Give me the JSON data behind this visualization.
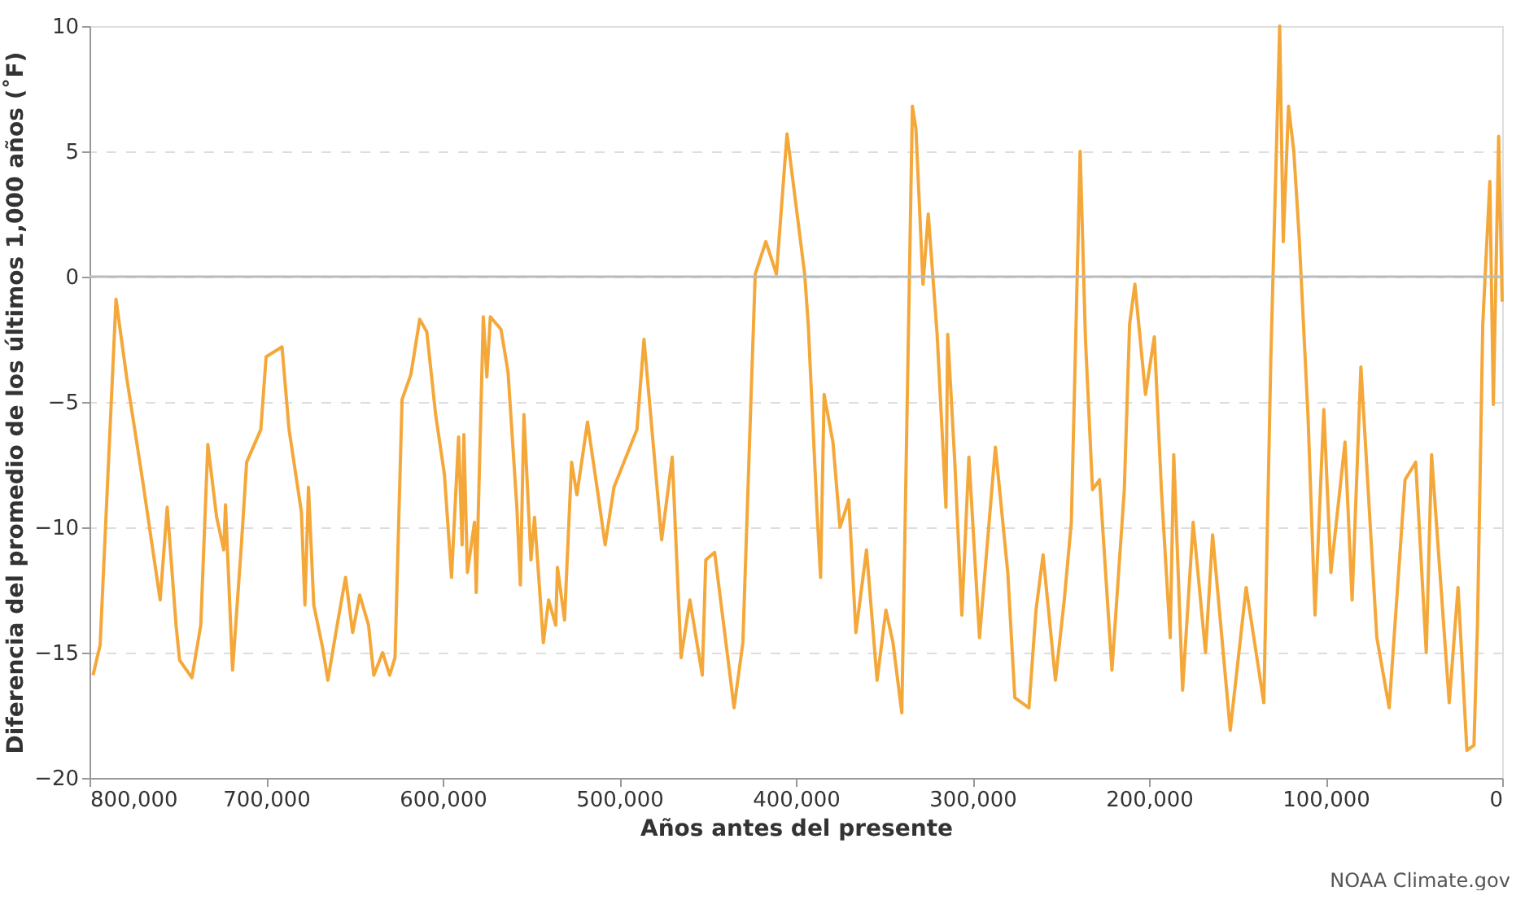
{
  "chart_data": {
    "type": "line",
    "xlabel": "Años antes del presente",
    "ylabel": "Diferencia del promedio de los últimos 1,000 años (˚F)",
    "annotations": [
      "NOAA Climate.gov"
    ],
    "x": [
      798000,
      794000,
      785000,
      779000,
      770000,
      760000,
      756000,
      751000,
      749000,
      742000,
      737000,
      733000,
      728000,
      724000,
      723000,
      719000,
      714000,
      711000,
      703000,
      700000,
      691000,
      687000,
      680000,
      678000,
      676000,
      673000,
      668000,
      665000,
      660000,
      655000,
      651000,
      647000,
      642000,
      639000,
      634000,
      630000,
      627000,
      623000,
      618000,
      613000,
      609000,
      604000,
      599000,
      595000,
      591000,
      589000,
      588000,
      586000,
      582000,
      581000,
      577000,
      575000,
      573000,
      567000,
      563000,
      558000,
      556000,
      554000,
      550000,
      548000,
      543000,
      540000,
      536000,
      535000,
      531000,
      527000,
      524000,
      518000,
      512000,
      508000,
      503000,
      490000,
      486000,
      476000,
      470000,
      465000,
      460000,
      453000,
      451000,
      446000,
      435000,
      430000,
      425000,
      423000,
      417000,
      411000,
      405000,
      400000,
      395000,
      393000,
      388000,
      386000,
      384000,
      379000,
      375000,
      370000,
      366000,
      360000,
      354000,
      349000,
      345000,
      340000,
      334000,
      332000,
      328000,
      325000,
      320000,
      315000,
      314000,
      310000,
      306000,
      302000,
      296000,
      287000,
      280000,
      276000,
      268000,
      264000,
      260000,
      253000,
      248000,
      244000,
      239000,
      236000,
      232000,
      228000,
      221000,
      214000,
      211000,
      208000,
      202000,
      197000,
      193000,
      188000,
      186000,
      181000,
      175000,
      168000,
      164000,
      154000,
      145000,
      135000,
      131000,
      126000,
      124000,
      121000,
      118000,
      115000,
      110000,
      106000,
      101000,
      97000,
      89000,
      85000,
      80000,
      71000,
      64000,
      55000,
      49000,
      43000,
      40000,
      30000,
      25000,
      20000,
      16000,
      14000,
      11000,
      7000,
      5000,
      2000,
      0
    ],
    "series": [
      {
        "color": "#f5a83a",
        "values": [
          -15.9,
          -14.7,
          -0.9,
          -4.0,
          -8.1,
          -12.9,
          -9.2,
          -13.9,
          -15.3,
          -16.0,
          -13.9,
          -6.7,
          -9.6,
          -10.9,
          -9.1,
          -15.7,
          -10.7,
          -7.4,
          -6.1,
          -3.2,
          -2.8,
          -6.1,
          -9.4,
          -13.1,
          -8.4,
          -13.1,
          -14.8,
          -16.1,
          -14.0,
          -12.0,
          -14.2,
          -12.7,
          -13.9,
          -15.9,
          -15.0,
          -15.9,
          -15.2,
          -4.9,
          -3.9,
          -1.7,
          -2.2,
          -5.5,
          -7.9,
          -12.0,
          -6.4,
          -10.7,
          -6.3,
          -11.8,
          -9.8,
          -12.6,
          -1.6,
          -4.0,
          -1.6,
          -2.1,
          -3.8,
          -9.2,
          -12.3,
          -5.5,
          -11.3,
          -9.6,
          -14.6,
          -12.9,
          -13.9,
          -11.6,
          -13.7,
          -7.4,
          -8.7,
          -5.8,
          -8.7,
          -10.7,
          -8.4,
          -6.1,
          -2.5,
          -10.5,
          -7.2,
          -15.2,
          -12.9,
          -15.9,
          -11.3,
          -11.0,
          -17.2,
          -14.6,
          -4.0,
          0.1,
          1.4,
          0.1,
          5.7,
          2.9,
          0.1,
          -1.9,
          -9.4,
          -12.0,
          -4.7,
          -6.6,
          -10.0,
          -8.9,
          -14.2,
          -10.9,
          -16.1,
          -13.3,
          -14.6,
          -17.4,
          6.8,
          5.9,
          -0.3,
          2.5,
          -2.3,
          -9.2,
          -2.3,
          -7.4,
          -13.5,
          -7.2,
          -14.4,
          -6.8,
          -11.8,
          -16.8,
          -17.2,
          -13.3,
          -11.1,
          -16.1,
          -12.9,
          -9.8,
          5.0,
          -2.5,
          -8.5,
          -8.1,
          -15.7,
          -8.5,
          -1.9,
          -0.3,
          -4.7,
          -2.4,
          -8.5,
          -14.4,
          -7.1,
          -16.5,
          -9.8,
          -15.0,
          -10.3,
          -18.1,
          -12.4,
          -17.0,
          -3.2,
          10.0,
          1.4,
          6.8,
          5.0,
          1.6,
          -5.5,
          -13.5,
          -5.3,
          -11.8,
          -6.6,
          -12.9,
          -3.6,
          -14.4,
          -17.2,
          -8.1,
          -7.4,
          -15.0,
          -7.1,
          -17.0,
          -12.4,
          -18.9,
          -18.7,
          -13.9,
          -1.9,
          3.8,
          -5.1,
          5.6,
          -1.0
        ]
      }
    ],
    "xlim": [
      800000,
      0
    ],
    "xticks": [
      {
        "value": 800000,
        "label": "800,000"
      },
      {
        "value": 700000,
        "label": "700,000"
      },
      {
        "value": 600000,
        "label": "600,000"
      },
      {
        "value": 500000,
        "label": "500,000"
      },
      {
        "value": 400000,
        "label": "400,000"
      },
      {
        "value": 300000,
        "label": "300,000"
      },
      {
        "value": 200000,
        "label": "200,000"
      },
      {
        "value": 100000,
        "label": "100,000"
      },
      0
    ],
    "ylim": [
      -20,
      10
    ],
    "yticks": [
      -20,
      -15,
      -10,
      -5,
      0,
      5,
      10
    ],
    "grid": "y",
    "ref_lines": [
      {
        "axis": "y",
        "value": 0,
        "color": "#bbbbbb"
      }
    ],
    "marker": "none",
    "line_style": "solid"
  }
}
